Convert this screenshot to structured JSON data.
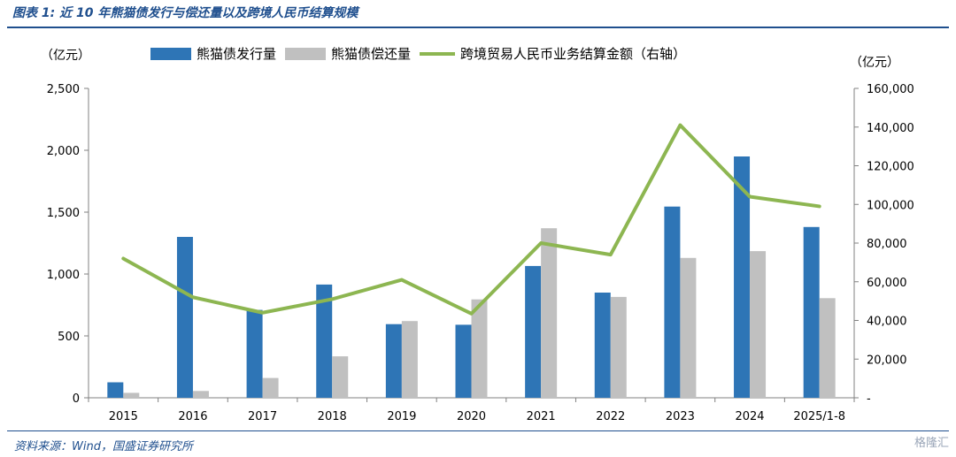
{
  "header": {
    "title": "图表 1: 近 10 年熊猫债发行与偿还量以及跨境人民币结算规模"
  },
  "footer": {
    "source": "资料来源：Wind，国盛证券研究所",
    "watermark": "格隆汇"
  },
  "chart_data": {
    "type": "bar",
    "title": "",
    "categories": [
      "2015",
      "2016",
      "2017",
      "2018",
      "2019",
      "2020",
      "2021",
      "2022",
      "2023",
      "2024",
      "2025/1-8"
    ],
    "series": [
      {
        "name": "熊猫债发行量",
        "type": "bar",
        "axis": "left",
        "color": "#2e75b6",
        "values": [
          125,
          1300,
          710,
          915,
          595,
          590,
          1065,
          850,
          1545,
          1950,
          1380
        ]
      },
      {
        "name": "熊猫债偿还量",
        "type": "bar",
        "axis": "left",
        "color": "#c0c0c0",
        "values": [
          40,
          55,
          160,
          335,
          620,
          795,
          1370,
          815,
          1130,
          1185,
          805
        ]
      },
      {
        "name": "跨境贸易人民币业务结算金额（右轴）",
        "type": "line",
        "axis": "right",
        "color": "#8db651",
        "values": [
          72000,
          52000,
          44000,
          51000,
          61000,
          43500,
          80000,
          74000,
          141000,
          104000,
          99000
        ]
      }
    ],
    "left_axis": {
      "unit": "（亿元）",
      "ylim": [
        0,
        2500
      ],
      "ticks": [
        "0",
        "500",
        "1,000",
        "1,500",
        "2,000",
        "2,500"
      ]
    },
    "right_axis": {
      "unit": "（亿元）",
      "ylim": [
        0,
        160000
      ],
      "ticks": [
        "-",
        "20,000",
        "40,000",
        "60,000",
        "80,000",
        "100,000",
        "120,000",
        "140,000",
        "160,000"
      ]
    },
    "grid": false,
    "legend_position": "top"
  }
}
